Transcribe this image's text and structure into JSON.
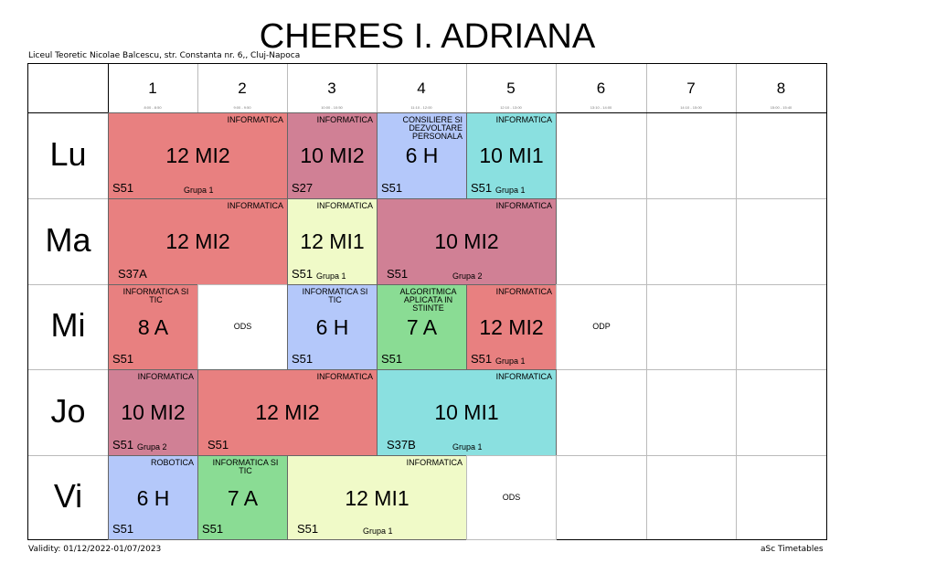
{
  "teacher": "CHERES I. ADRIANA",
  "school": "Liceul Teoretic Nicolae Balcescu, str. Constanta nr. 6,, Cluj-Napoca",
  "validity": "Validity: 01/12/2022-01/07/2023",
  "brand": "aSc Timetables",
  "periods": [
    {
      "num": "1",
      "time": "8:00 - 8:50"
    },
    {
      "num": "2",
      "time": "9:00 - 9:50"
    },
    {
      "num": "3",
      "time": "10:00 - 10:50"
    },
    {
      "num": "4",
      "time": "11:10 - 12:00"
    },
    {
      "num": "5",
      "time": "12:10 - 13:00"
    },
    {
      "num": "6",
      "time": "13:10 - 14:00"
    },
    {
      "num": "7",
      "time": "14:10 - 15:00"
    },
    {
      "num": "8",
      "time": "15:00 - 15:40"
    }
  ],
  "days": [
    "Lu",
    "Ma",
    "Mi",
    "Jo",
    "Vi"
  ],
  "colors": {
    "red": "#e88080",
    "mauve": "#d08095",
    "blue": "#b4c8fa",
    "cyan": "#8ae0e0",
    "yellow": "#f0fac8",
    "green": "#8adc94"
  },
  "lessons": {
    "lu1": {
      "subject": "INFORMATICA",
      "class": "12 MI2",
      "room": "S51",
      "group": "Grupa 1"
    },
    "lu3": {
      "subject": "INFORMATICA",
      "class": "10 MI2",
      "room": "S27"
    },
    "lu4": {
      "subject": "CONSILIERE SI DEZVOLTARE PERSONALA",
      "class": "6 H",
      "room": "S51"
    },
    "lu5": {
      "subject": "INFORMATICA",
      "class": "10 MI1",
      "room": "S51",
      "group": "Grupa 1"
    },
    "ma1": {
      "subject": "INFORMATICA",
      "class": "12 MI2",
      "room": "S37A"
    },
    "ma3": {
      "subject": "INFORMATICA",
      "class": "12 MI1",
      "room": "S51",
      "group": "Grupa 1"
    },
    "ma4": {
      "subject": "INFORMATICA",
      "class": "10 MI2",
      "room": "S51",
      "group": "Grupa 2"
    },
    "mi1": {
      "subject": "INFORMATICA SI TIC",
      "class": "8 A",
      "room": "S51"
    },
    "mi2": {
      "text": "ODS"
    },
    "mi3": {
      "subject": "INFORMATICA SI TIC",
      "class": "6 H",
      "room": "S51"
    },
    "mi4": {
      "subject": "ALGORITMICA APLICATA IN STIINTE",
      "class": "7 A",
      "room": "S51"
    },
    "mi5": {
      "subject": "INFORMATICA",
      "class": "12 MI2",
      "room": "S51",
      "group": "Grupa 1"
    },
    "mi6": {
      "text": "ODP"
    },
    "jo1": {
      "subject": "INFORMATICA",
      "class": "10 MI2",
      "room": "S51",
      "group": "Grupa 2"
    },
    "jo2": {
      "subject": "INFORMATICA",
      "class": "12 MI2",
      "room": "S51"
    },
    "jo4": {
      "subject": "INFORMATICA",
      "class": "10 MI1",
      "room": "S37B",
      "group": "Grupa 1"
    },
    "vi1": {
      "subject": "ROBOTICA",
      "class": "6 H",
      "room": "S51"
    },
    "vi2": {
      "subject": "INFORMATICA SI TIC",
      "class": "7 A",
      "room": "S51"
    },
    "vi3": {
      "subject": "INFORMATICA",
      "class": "12 MI1",
      "room": "S51",
      "group": "Grupa 1"
    },
    "vi5": {
      "text": "ODS"
    }
  }
}
